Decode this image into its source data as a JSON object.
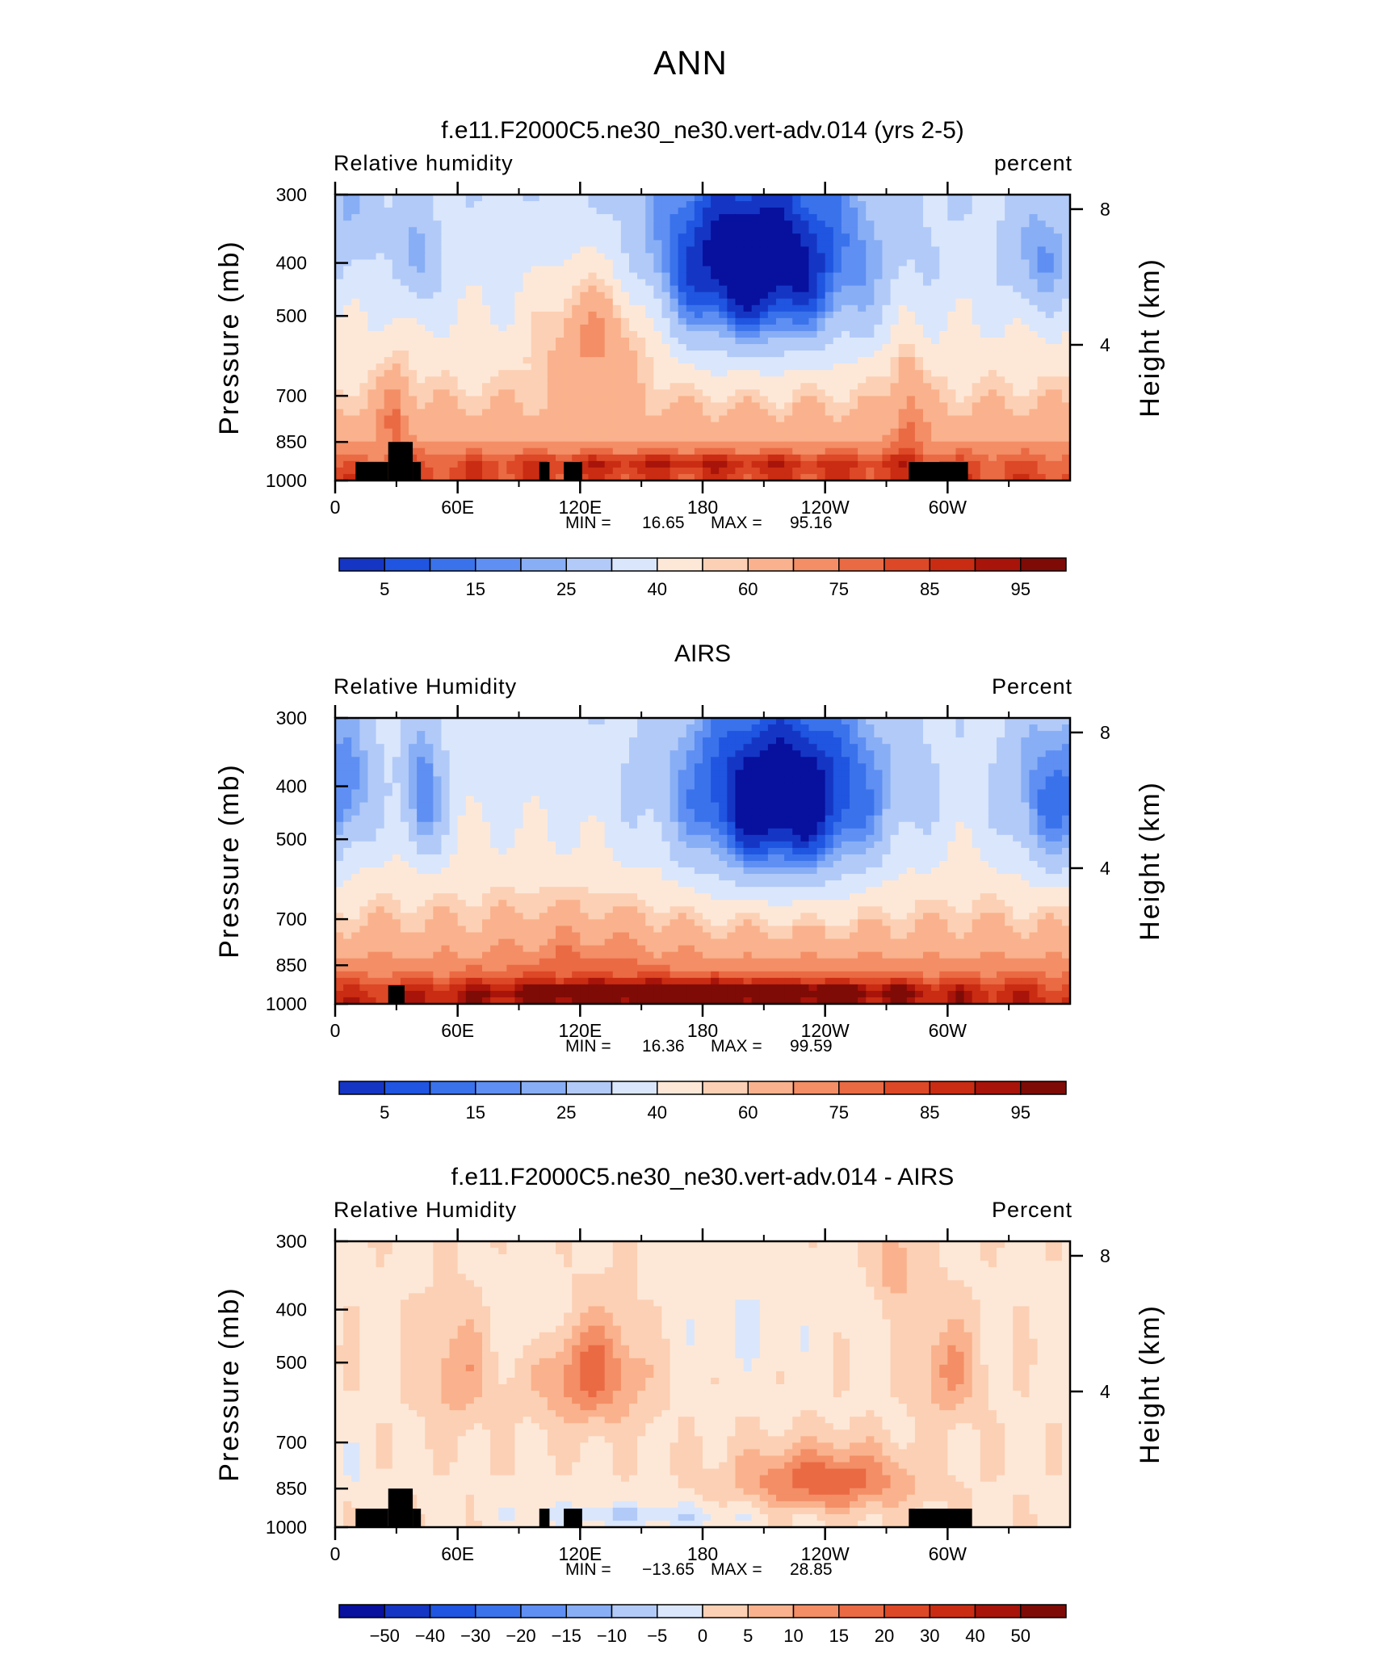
{
  "figure_title": "ANN",
  "colors": {
    "palette": [
      "#08109e",
      "#1536c4",
      "#1f55e0",
      "#3a72ec",
      "#5f8ff2",
      "#88aef5",
      "#b2caf8",
      "#dae6fb",
      "#fde8d8",
      "#fcd0b4",
      "#f9b28d",
      "#f38e66",
      "#ea6a44",
      "#dd4826",
      "#c92c12",
      "#a8140a",
      "#7f0b06"
    ],
    "terrain": "#000000"
  },
  "chart_data": [
    {
      "type": "heatmap",
      "title": "f.e11.F2000C5.ne30_ne30.vert-adv.014 (yrs 2-5)",
      "left_label": "Relative  humidity",
      "right_label": "percent",
      "ylabel": "Pressure  (mb)",
      "y2label": "Height  (km)",
      "x_ticks": [
        "0",
        "60E",
        "120E",
        "180",
        "120W",
        "60W"
      ],
      "y_ticks": [
        "300",
        "400",
        "500",
        "700",
        "850",
        "1000"
      ],
      "y2_ticks": [
        "8",
        "4"
      ],
      "min_label": "MIN =",
      "min_value": "16.65",
      "max_label": "MAX =",
      "max_value": "95.16",
      "levels": [
        "5",
        "15",
        "25",
        "40",
        "60",
        "75",
        "85",
        "95"
      ],
      "blobs": [
        {
          "lon": 205,
          "p": 410,
          "amp": -50,
          "wl": 55,
          "wp": 170
        },
        {
          "lon": 40,
          "p": 400,
          "amp": -18,
          "wl": 10,
          "wp": 90
        },
        {
          "lon": 345,
          "p": 400,
          "amp": -20,
          "wl": 16,
          "wp": 100
        },
        {
          "lon": 10,
          "p": 320,
          "amp": -10,
          "wl": 14,
          "wp": 80
        },
        {
          "lon": 130,
          "p": 520,
          "amp": 28,
          "wl": 28,
          "wp": 150
        },
        {
          "lon": 30,
          "p": 720,
          "amp": 14,
          "wl": 8,
          "wp": 140
        },
        {
          "lon": 280,
          "p": 700,
          "amp": 15,
          "wl": 8,
          "wp": 200
        },
        {
          "lon": 180,
          "p": 930,
          "amp": 12,
          "wl": 120,
          "wp": 40
        }
      ],
      "terrain": [
        {
          "lon0": 10,
          "lon1": 26,
          "p": 925
        },
        {
          "lon0": 26,
          "lon1": 38,
          "p": 850
        },
        {
          "lon0": 38,
          "lon1": 42,
          "p": 925
        },
        {
          "lon0": 100,
          "lon1": 105,
          "p": 925
        },
        {
          "lon0": 112,
          "lon1": 121,
          "p": 925
        },
        {
          "lon0": 281,
          "lon1": 310,
          "p": 925
        }
      ]
    },
    {
      "type": "heatmap",
      "title": "AIRS",
      "left_label": "Relative  Humidity",
      "right_label": "Percent",
      "ylabel": "Pressure  (mb)",
      "y2label": "Height  (km)",
      "x_ticks": [
        "0",
        "60E",
        "120E",
        "180",
        "120W",
        "60W"
      ],
      "y_ticks": [
        "300",
        "400",
        "500",
        "700",
        "850",
        "1000"
      ],
      "y2_ticks": [
        "8",
        "4"
      ],
      "min_label": "MIN =",
      "min_value": "16.36",
      "max_label": "MAX =",
      "max_value": "99.59",
      "levels": [
        "5",
        "15",
        "25",
        "40",
        "60",
        "75",
        "85",
        "95"
      ],
      "blobs": [
        {
          "lon": 218,
          "p": 430,
          "amp": -52,
          "wl": 52,
          "wp": 180
        },
        {
          "lon": 43,
          "p": 430,
          "amp": -28,
          "wl": 10,
          "wp": 130
        },
        {
          "lon": 350,
          "p": 440,
          "amp": -28,
          "wl": 22,
          "wp": 160
        },
        {
          "lon": 10,
          "p": 400,
          "amp": -12,
          "wl": 12,
          "wp": 120
        },
        {
          "lon": 120,
          "p": 780,
          "amp": 6,
          "wl": 40,
          "wp": 160
        },
        {
          "lon": 180,
          "p": 950,
          "amp": 22,
          "wl": 120,
          "wp": 45
        }
      ],
      "terrain": [
        {
          "lon0": 26,
          "lon1": 34,
          "p": 925
        }
      ]
    },
    {
      "type": "heatmap",
      "title": "f.e11.F2000C5.ne30_ne30.vert-adv.014 - AIRS",
      "left_label": "Relative  Humidity",
      "right_label": "Percent",
      "ylabel": "Pressure  (mb)",
      "y2label": "Height  (km)",
      "x_ticks": [
        "0",
        "60E",
        "120E",
        "180",
        "120W",
        "60W"
      ],
      "y_ticks": [
        "300",
        "400",
        "500",
        "700",
        "850",
        "1000"
      ],
      "y2_ticks": [
        "8",
        "4"
      ],
      "min_label": "MIN =",
      "min_value": "−13.65",
      "max_label": "MAX =",
      "max_value": "28.85",
      "levels": [
        "−50",
        "−40",
        "−30",
        "−20",
        "−15",
        "−10",
        "−5",
        "0",
        "5",
        "10",
        "15",
        "20",
        "30",
        "40",
        "50"
      ],
      "blobs": [
        {
          "lon": 125,
          "p": 520,
          "amp": 18,
          "wl": 25,
          "wp": 120
        },
        {
          "lon": 240,
          "p": 820,
          "amp": 20,
          "wl": 40,
          "wp": 110
        },
        {
          "lon": 60,
          "p": 520,
          "amp": 10,
          "wl": 18,
          "wp": 120
        },
        {
          "lon": 300,
          "p": 520,
          "amp": 12,
          "wl": 15,
          "wp": 110
        },
        {
          "lon": 100,
          "p": 420,
          "amp": -6,
          "wl": 20,
          "wp": 80
        },
        {
          "lon": 200,
          "p": 420,
          "amp": -4,
          "wl": 40,
          "wp": 100
        },
        {
          "lon": 150,
          "p": 950,
          "amp": -9,
          "wl": 60,
          "wp": 45
        },
        {
          "lon": 10,
          "p": 780,
          "amp": -4,
          "wl": 10,
          "wp": 100
        },
        {
          "lon": 275,
          "p": 330,
          "amp": 10,
          "wl": 10,
          "wp": 60
        }
      ],
      "terrain": [
        {
          "lon0": 10,
          "lon1": 26,
          "p": 925
        },
        {
          "lon0": 26,
          "lon1": 38,
          "p": 850
        },
        {
          "lon0": 38,
          "lon1": 42,
          "p": 925
        },
        {
          "lon0": 100,
          "lon1": 105,
          "p": 925
        },
        {
          "lon0": 112,
          "lon1": 121,
          "p": 925
        },
        {
          "lon0": 281,
          "lon1": 312,
          "p": 925
        }
      ]
    }
  ]
}
